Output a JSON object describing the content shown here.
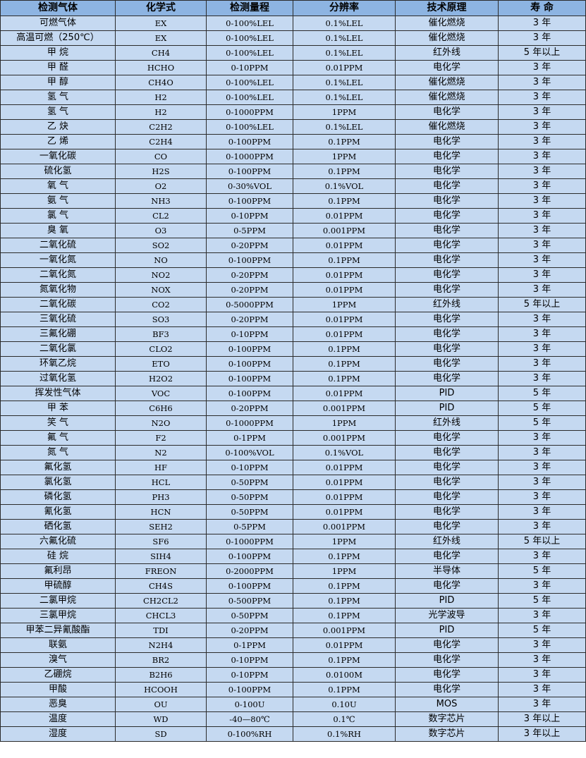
{
  "colors": {
    "header_bg": "#8db4e2",
    "row_bg": "#c5d9f1",
    "border": "#2b2b2b"
  },
  "headers": [
    "检测气体",
    "化学式",
    "检测量程",
    "分辨率",
    "技术原理",
    "寿 命"
  ],
  "rows": [
    [
      "可燃气体",
      "EX",
      "0-100%LEL",
      "0.1%LEL",
      "催化燃烧",
      "3 年"
    ],
    [
      "高温可燃（250℃）",
      "EX",
      "0-100%LEL",
      "0.1%LEL",
      "催化燃烧",
      "3 年"
    ],
    [
      "甲 烷",
      "CH4",
      "0-100%LEL",
      "0.1%LEL",
      "红外线",
      "5 年以上"
    ],
    [
      "甲 醛",
      "HCHO",
      "0-10PPM",
      "0.01PPM",
      "电化学",
      "3 年"
    ],
    [
      "甲 醇",
      "CH4O",
      "0-100%LEL",
      "0.1%LEL",
      "催化燃烧",
      "3 年"
    ],
    [
      "氢 气",
      "H2",
      "0-100%LEL",
      "0.1%LEL",
      "催化燃烧",
      "3 年"
    ],
    [
      "氢 气",
      "H2",
      "0-1000PPM",
      "1PPM",
      "电化学",
      "3 年"
    ],
    [
      "乙 炔",
      "C2H2",
      "0-100%LEL",
      "0.1%LEL",
      "催化燃烧",
      "3 年"
    ],
    [
      "乙 烯",
      "C2H4",
      "0-100PPM",
      "0.1PPM",
      "电化学",
      "3 年"
    ],
    [
      "一氧化碳",
      "CO",
      "0-1000PPM",
      "1PPM",
      "电化学",
      "3 年"
    ],
    [
      "硫化氢",
      "H2S",
      "0-100PPM",
      "0.1PPM",
      "电化学",
      "3 年"
    ],
    [
      "氧 气",
      "O2",
      "0-30%VOL",
      "0.1%VOL",
      "电化学",
      "3 年"
    ],
    [
      "氨 气",
      "NH3",
      "0-100PPM",
      "0.1PPM",
      "电化学",
      "3 年"
    ],
    [
      "氯 气",
      "CL2",
      "0-10PPM",
      "0.01PPM",
      "电化学",
      "3 年"
    ],
    [
      "臭 氧",
      "O3",
      "0-5PPM",
      "0.001PPM",
      "电化学",
      "3 年"
    ],
    [
      "二氧化硫",
      "SO2",
      "0-20PPM",
      "0.01PPM",
      "电化学",
      "3 年"
    ],
    [
      "一氧化氮",
      "NO",
      "0-100PPM",
      "0.1PPM",
      "电化学",
      "3 年"
    ],
    [
      "二氧化氮",
      "NO2",
      "0-20PPM",
      "0.01PPM",
      "电化学",
      "3 年"
    ],
    [
      "氮氧化物",
      "NOX",
      "0-20PPM",
      "0.01PPM",
      "电化学",
      "3 年"
    ],
    [
      "二氧化碳",
      "CO2",
      "0-5000PPM",
      "1PPM",
      "红外线",
      "5 年以上"
    ],
    [
      "三氧化硫",
      "SO3",
      "0-20PPM",
      "0.01PPM",
      "电化学",
      "3 年"
    ],
    [
      "三氟化硼",
      "BF3",
      "0-10PPM",
      "0.01PPM",
      "电化学",
      "3 年"
    ],
    [
      "二氧化氯",
      "CLO2",
      "0-100PPM",
      "0.1PPM",
      "电化学",
      "3 年"
    ],
    [
      "环氧乙烷",
      "ETO",
      "0-100PPM",
      "0.1PPM",
      "电化学",
      "3 年"
    ],
    [
      "过氧化氢",
      "H2O2",
      "0-100PPM",
      "0.1PPM",
      "电化学",
      "3 年"
    ],
    [
      "挥发性气体",
      "VOC",
      "0-100PPM",
      "0.01PPM",
      "PID",
      "5 年"
    ],
    [
      "甲 苯",
      "C6H6",
      "0-20PPM",
      "0.001PPM",
      "PID",
      "5 年"
    ],
    [
      "笑 气",
      "N2O",
      "0-1000PPM",
      "1PPM",
      "红外线",
      "5 年"
    ],
    [
      "氟 气",
      "F2",
      "0-1PPM",
      "0.001PPM",
      "电化学",
      "3 年"
    ],
    [
      "氮 气",
      "N2",
      "0-100%VOL",
      "0.1%VOL",
      "电化学",
      "3 年"
    ],
    [
      "氟化氢",
      "HF",
      "0-10PPM",
      "0.01PPM",
      "电化学",
      "3 年"
    ],
    [
      "氯化氢",
      "HCL",
      "0-50PPM",
      "0.01PPM",
      "电化学",
      "3 年"
    ],
    [
      "磷化氢",
      "PH3",
      "0-50PPM",
      "0.01PPM",
      "电化学",
      "3 年"
    ],
    [
      "氰化氢",
      "HCN",
      "0-50PPM",
      "0.01PPM",
      "电化学",
      "3 年"
    ],
    [
      "硒化氢",
      "SEH2",
      "0-5PPM",
      "0.001PPM",
      "电化学",
      "3 年"
    ],
    [
      "六氟化硫",
      "SF6",
      "0-1000PPM",
      "1PPM",
      "红外线",
      "5 年以上"
    ],
    [
      "硅 烷",
      "SIH4",
      "0-100PPM",
      "0.1PPM",
      "电化学",
      "3 年"
    ],
    [
      "氟利昂",
      "FREON",
      "0-2000PPM",
      "1PPM",
      "半导体",
      "5 年"
    ],
    [
      "甲硫醇",
      "CH4S",
      "0-100PPM",
      "0.1PPM",
      "电化学",
      "3 年"
    ],
    [
      "二氯甲烷",
      "CH2CL2",
      "0-500PPM",
      "0.1PPM",
      "PID",
      "5 年"
    ],
    [
      "三氯甲烷",
      "CHCL3",
      "0-50PPM",
      "0.1PPM",
      "光学波导",
      "3 年"
    ],
    [
      "甲苯二异氰酸酯",
      "TDI",
      "0-20PPM",
      "0.001PPM",
      "PID",
      "5 年"
    ],
    [
      "联氨",
      "N2H4",
      "0-1PPM",
      "0.01PPM",
      "电化学",
      "3 年"
    ],
    [
      "溴气",
      "BR2",
      "0-10PPM",
      "0.1PPM",
      "电化学",
      "3 年"
    ],
    [
      "乙硼烷",
      "B2H6",
      "0-10PPM",
      "0.0100M",
      "电化学",
      "3 年"
    ],
    [
      "甲酸",
      "HCOOH",
      "0-100PPM",
      "0.1PPM",
      "电化学",
      "3 年"
    ],
    [
      "恶臭",
      "OU",
      "0-100U",
      "0.10U",
      "MOS",
      "3 年"
    ],
    [
      "温度",
      "WD",
      "-40—80℃",
      "0.1℃",
      "数字芯片",
      "3 年以上"
    ],
    [
      "湿度",
      "SD",
      "0-100%RH",
      "0.1%RH",
      "数字芯片",
      "3 年以上"
    ]
  ]
}
